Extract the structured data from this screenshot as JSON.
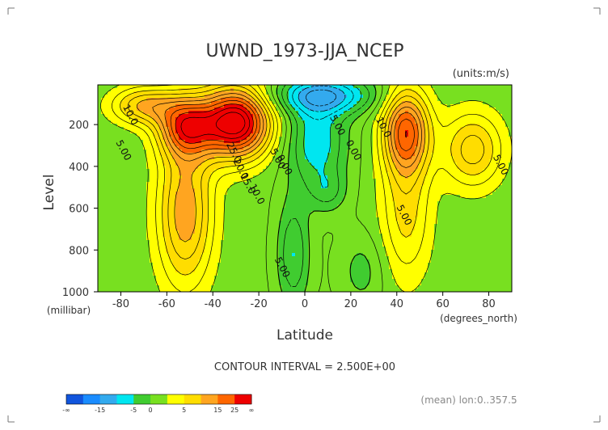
{
  "chart_data": {
    "type": "contour",
    "title": "UWND_1973-JJA_NCEP",
    "units": "(units:m/s)",
    "xlabel": "Latitude",
    "ylabel": "Level",
    "x_unit": "(degrees_north)",
    "y_unit": "(millibar)",
    "xlim": [
      -90,
      90
    ],
    "ylim": [
      1000,
      10
    ],
    "y_inverted": true,
    "x_ticks": [
      "-80",
      "-60",
      "-40",
      "-20",
      "0",
      "20",
      "40",
      "60",
      "80"
    ],
    "x_tick_values": [
      -80,
      -60,
      -40,
      -20,
      0,
      20,
      40,
      60,
      80
    ],
    "y_ticks": [
      "200",
      "400",
      "600",
      "800",
      "1000"
    ],
    "y_tick_values": [
      200,
      400,
      600,
      800,
      1000
    ],
    "contour_interval": "CONTOUR INTERVAL = 2.500E+00",
    "footer_note": "(mean) lon:0..357.5",
    "contour_labels": [
      {
        "text": "10.0",
        "lat": -77,
        "lev": 160
      },
      {
        "text": "5.00",
        "lat": -80,
        "lev": 330
      },
      {
        "text": "25.0",
        "lat": -32,
        "lev": 340
      },
      {
        "text": "20.0",
        "lat": -29,
        "lev": 420
      },
      {
        "text": "15.0",
        "lat": -26,
        "lev": 490
      },
      {
        "text": "10.0",
        "lat": -22,
        "lev": 540
      },
      {
        "text": "5.00",
        "lat": -13,
        "lev": 370
      },
      {
        "text": "0.00",
        "lat": -10,
        "lev": 400
      },
      {
        "text": "5.00",
        "lat": 13,
        "lev": 210
      },
      {
        "text": "0.00",
        "lat": 20,
        "lev": 330
      },
      {
        "text": "10.0",
        "lat": 33,
        "lev": 220
      },
      {
        "text": "5.00",
        "lat": 42,
        "lev": 640
      },
      {
        "text": "5.00",
        "lat": 84,
        "lev": 400
      },
      {
        "text": "5.00",
        "lat": -11,
        "lev": 890
      }
    ],
    "fill_levels": [
      -15,
      -10,
      -5,
      0,
      5,
      10,
      15,
      20,
      25
    ],
    "colorbar": {
      "labels": [
        "-∞",
        "-15",
        "-5",
        "0",
        "5",
        "15",
        "25",
        "∞"
      ],
      "colors": [
        "#1155dd",
        "#1a8cff",
        "#33aaee",
        "#00e6f0",
        "#40cc30",
        "#78e020",
        "#ffff00",
        "#ffdd00",
        "#ffa520",
        "#ff6600",
        "#ee0000"
      ]
    }
  }
}
